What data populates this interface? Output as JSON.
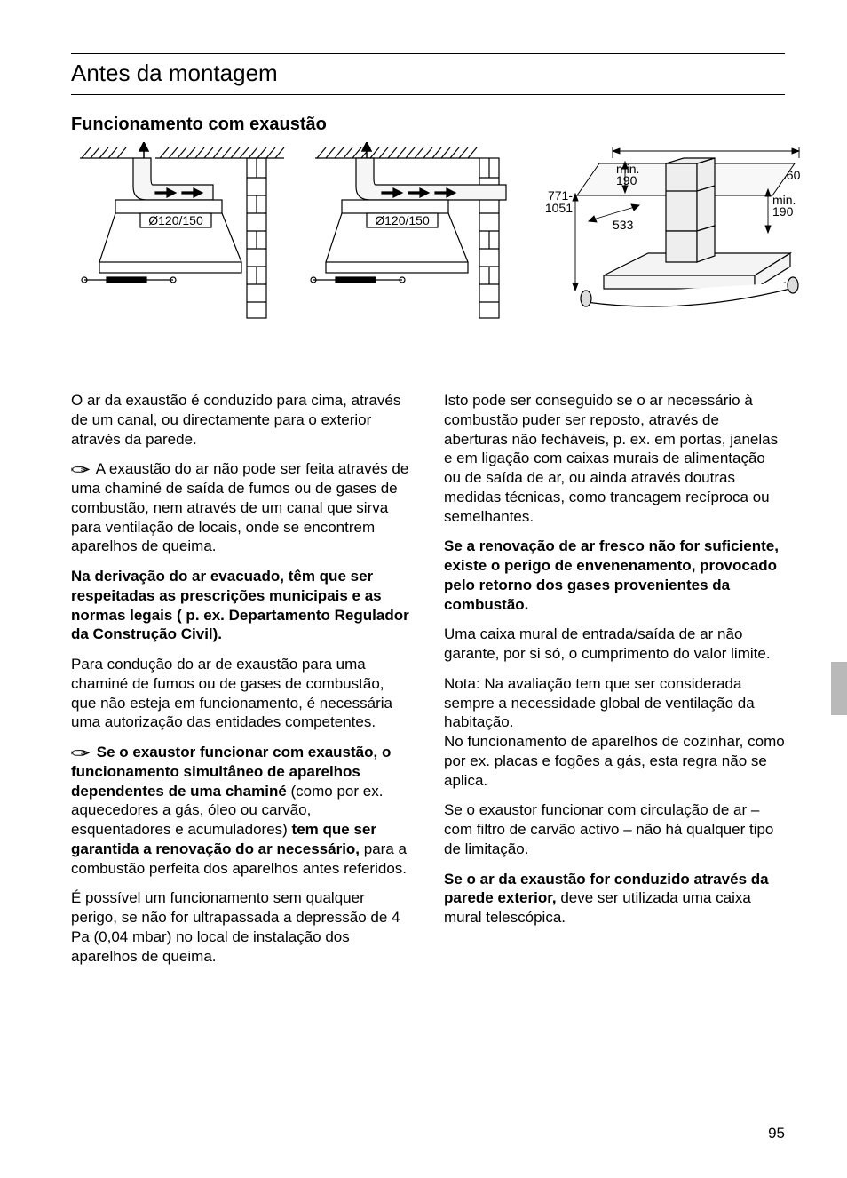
{
  "page_title": "Antes da montagem",
  "subheading": "Funcionamento com exaustão",
  "page_number": "95",
  "diagrams": {
    "duct1": {
      "label": "Ø120/150"
    },
    "duct2": {
      "label": "Ø120/150"
    },
    "iso": {
      "dim_height_range": "771-\n1051",
      "dim_min_upper": "min.\n190",
      "dim_width_right": "660",
      "dim_min_lower": "min.\n190",
      "dim_depth": "533"
    }
  },
  "left_column": [
    {
      "hand": false,
      "bold": false,
      "text": "O ar da exaustão é conduzido para cima, através de um canal, ou directamente para o exterior através da parede."
    },
    {
      "hand": true,
      "bold": false,
      "text": "A exaustão do ar não pode ser feita através de uma chaminé de saída de fumos ou de gases de combustão, nem através de um canal que sirva para ventilação de locais, onde se encontrem aparelhos de queima."
    },
    {
      "hand": false,
      "bold": true,
      "text": "Na derivação do ar evacuado, têm que ser respeitadas as prescrições municipais e as normas legais ( p. ex. Departamento Regulador da Construção Civil)."
    },
    {
      "hand": false,
      "bold": false,
      "text": "Para condução do ar de exaustão para uma chaminé de fumos ou de gases de combustão, que não esteja em funcionamento, é necessária uma autorização das entidades competentes."
    },
    {
      "hand": true,
      "html": "<span class=\"bold\">Se o exaustor funcionar com exaustão, o funcionamento simultâneo de aparelhos dependentes de uma chaminé</span> (como por ex. aquecedores a gás, óleo ou carvão, esquentadores e acumuladores) <span class=\"bold\">tem que ser garantida a renovação do ar necessário,</span> para a combustão perfeita dos aparelhos antes referidos."
    },
    {
      "hand": false,
      "bold": false,
      "text": "É possível um funcionamento sem qualquer perigo, se não for ultrapassada a depressão de 4 Pa (0,04 mbar) no local de instalação dos aparelhos de queima."
    }
  ],
  "right_column": [
    {
      "hand": false,
      "bold": false,
      "text": "Isto pode ser conseguido se o ar necessário à combustão puder ser reposto, através de aberturas não fecháveis, p. ex. em portas, janelas e em ligação com caixas murais de alimentação ou de saída de ar, ou ainda através doutras medidas técnicas, como trancagem recíproca ou semelhantes."
    },
    {
      "hand": false,
      "bold": true,
      "text": "Se a renovação de ar fresco não for suficiente, existe o perigo de envenenamento, provocado pelo retorno dos gases provenientes da combustão."
    },
    {
      "hand": false,
      "bold": false,
      "text": "Uma caixa mural de entrada/saída de ar não garante, por si só, o cumprimento do valor limite."
    },
    {
      "hand": false,
      "bold": false,
      "text": "Nota: Na avaliação tem que ser considerada sempre a necessidade global de ventilação da habitação.\nNo funcionamento de aparelhos de cozinhar, como por ex. placas e fogões a gás, esta regra não se aplica."
    },
    {
      "hand": false,
      "bold": false,
      "text": "Se o exaustor funcionar com circulação de ar – com filtro de carvão activo – não há qualquer tipo de limitação."
    },
    {
      "hand": false,
      "html": "<span class=\"bold\">Se o ar da exaustão for conduzido através da parede exterior,</span> deve ser utilizada uma caixa mural telescópica."
    }
  ],
  "colors": {
    "text": "#000000",
    "background": "#ffffff",
    "stroke": "#000000",
    "light_fill": "#f0f0f0",
    "side_tab": "#b9b9b9"
  },
  "fonts": {
    "body_size_pt": 13,
    "title_size_pt": 20,
    "subheading_size_pt": 15
  }
}
